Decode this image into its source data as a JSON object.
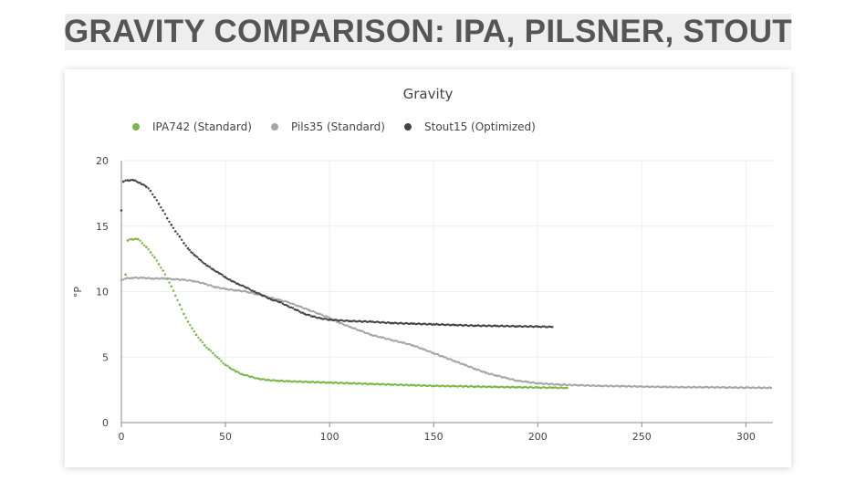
{
  "banner": {
    "title": "GRAVITY COMPARISON: IPA, PILSNER, STOUT"
  },
  "chart_data": {
    "type": "scatter",
    "title": "Gravity",
    "xlabel": "",
    "ylabel": "°P",
    "xlim": [
      0,
      313
    ],
    "ylim": [
      0,
      20
    ],
    "x_ticks": [
      0,
      50,
      100,
      150,
      200,
      250,
      300
    ],
    "y_ticks": [
      0,
      5,
      10,
      15,
      20
    ],
    "grid": true,
    "legend_position": "top-left",
    "series": [
      {
        "name": "IPA742 (Standard)",
        "color": "#7ab648",
        "points": [
          [
            2,
            11.3
          ],
          [
            3,
            13.9
          ],
          [
            5,
            14.0
          ],
          [
            8,
            14.0
          ],
          [
            10,
            13.7
          ],
          [
            12,
            13.4
          ],
          [
            14,
            13.0
          ],
          [
            16,
            12.6
          ],
          [
            18,
            12.1
          ],
          [
            20,
            11.6
          ],
          [
            22,
            11.0
          ],
          [
            24,
            10.4
          ],
          [
            26,
            9.7
          ],
          [
            28,
            9.0
          ],
          [
            30,
            8.3
          ],
          [
            32,
            7.7
          ],
          [
            34,
            7.2
          ],
          [
            36,
            6.7
          ],
          [
            38,
            6.3
          ],
          [
            40,
            5.9
          ],
          [
            42,
            5.6
          ],
          [
            44,
            5.3
          ],
          [
            46,
            5.0
          ],
          [
            48,
            4.7
          ],
          [
            50,
            4.4
          ],
          [
            52,
            4.2
          ],
          [
            55,
            3.9
          ],
          [
            58,
            3.7
          ],
          [
            62,
            3.5
          ],
          [
            66,
            3.35
          ],
          [
            70,
            3.25
          ],
          [
            75,
            3.2
          ],
          [
            80,
            3.15
          ],
          [
            90,
            3.1
          ],
          [
            100,
            3.05
          ],
          [
            110,
            3.0
          ],
          [
            120,
            2.95
          ],
          [
            130,
            2.9
          ],
          [
            140,
            2.85
          ],
          [
            150,
            2.8
          ],
          [
            160,
            2.78
          ],
          [
            170,
            2.75
          ],
          [
            180,
            2.72
          ],
          [
            190,
            2.7
          ],
          [
            200,
            2.68
          ],
          [
            207,
            2.66
          ],
          [
            214,
            2.65
          ]
        ]
      },
      {
        "name": "Pils35 (Standard)",
        "color": "#a6a6a6",
        "points": [
          [
            0,
            10.9
          ],
          [
            2,
            11.0
          ],
          [
            5,
            11.05
          ],
          [
            10,
            11.05
          ],
          [
            15,
            11.0
          ],
          [
            20,
            11.0
          ],
          [
            25,
            10.95
          ],
          [
            30,
            10.9
          ],
          [
            35,
            10.8
          ],
          [
            40,
            10.6
          ],
          [
            45,
            10.35
          ],
          [
            50,
            10.2
          ],
          [
            55,
            10.1
          ],
          [
            60,
            10.0
          ],
          [
            65,
            9.8
          ],
          [
            70,
            9.6
          ],
          [
            75,
            9.4
          ],
          [
            80,
            9.2
          ],
          [
            85,
            8.9
          ],
          [
            90,
            8.6
          ],
          [
            95,
            8.3
          ],
          [
            100,
            8.0
          ],
          [
            105,
            7.6
          ],
          [
            110,
            7.3
          ],
          [
            115,
            7.0
          ],
          [
            120,
            6.7
          ],
          [
            125,
            6.5
          ],
          [
            130,
            6.3
          ],
          [
            135,
            6.1
          ],
          [
            140,
            5.9
          ],
          [
            145,
            5.6
          ],
          [
            150,
            5.3
          ],
          [
            155,
            5.0
          ],
          [
            160,
            4.7
          ],
          [
            165,
            4.4
          ],
          [
            170,
            4.1
          ],
          [
            175,
            3.8
          ],
          [
            180,
            3.6
          ],
          [
            185,
            3.4
          ],
          [
            190,
            3.2
          ],
          [
            195,
            3.1
          ],
          [
            200,
            3.0
          ],
          [
            210,
            2.9
          ],
          [
            220,
            2.85
          ],
          [
            230,
            2.8
          ],
          [
            240,
            2.78
          ],
          [
            250,
            2.75
          ],
          [
            260,
            2.72
          ],
          [
            270,
            2.7
          ],
          [
            280,
            2.7
          ],
          [
            290,
            2.68
          ],
          [
            300,
            2.67
          ],
          [
            312,
            2.65
          ]
        ]
      },
      {
        "name": "Stout15 (Optimized)",
        "color": "#444444",
        "points": [
          [
            0,
            16.2
          ],
          [
            1,
            18.4
          ],
          [
            3,
            18.5
          ],
          [
            6,
            18.5
          ],
          [
            9,
            18.3
          ],
          [
            12,
            18.0
          ],
          [
            14,
            17.7
          ],
          [
            16,
            17.2
          ],
          [
            18,
            16.7
          ],
          [
            20,
            16.2
          ],
          [
            22,
            15.6
          ],
          [
            24,
            15.1
          ],
          [
            26,
            14.6
          ],
          [
            28,
            14.2
          ],
          [
            30,
            13.7
          ],
          [
            32,
            13.3
          ],
          [
            35,
            12.8
          ],
          [
            38,
            12.4
          ],
          [
            41,
            12.0
          ],
          [
            44,
            11.7
          ],
          [
            47,
            11.4
          ],
          [
            50,
            11.1
          ],
          [
            53,
            10.8
          ],
          [
            56,
            10.6
          ],
          [
            60,
            10.3
          ],
          [
            64,
            10.0
          ],
          [
            68,
            9.7
          ],
          [
            72,
            9.4
          ],
          [
            76,
            9.2
          ],
          [
            80,
            8.9
          ],
          [
            84,
            8.6
          ],
          [
            88,
            8.3
          ],
          [
            92,
            8.1
          ],
          [
            96,
            7.95
          ],
          [
            100,
            7.85
          ],
          [
            110,
            7.75
          ],
          [
            120,
            7.7
          ],
          [
            130,
            7.6
          ],
          [
            140,
            7.55
          ],
          [
            150,
            7.5
          ],
          [
            160,
            7.45
          ],
          [
            170,
            7.4
          ],
          [
            180,
            7.38
          ],
          [
            190,
            7.35
          ],
          [
            200,
            7.33
          ],
          [
            207,
            7.3
          ]
        ]
      }
    ]
  }
}
